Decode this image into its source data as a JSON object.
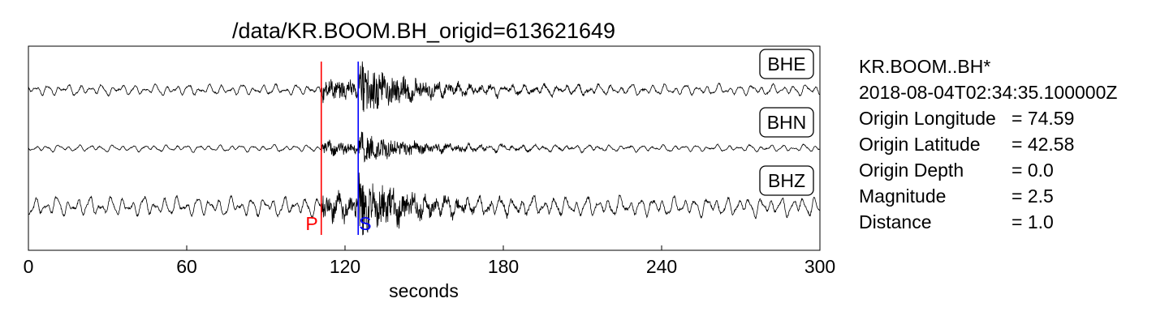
{
  "chart_data": {
    "type": "line",
    "title": "/data/KR.BOOM.BH_origid=613621649",
    "xlabel": "seconds",
    "ylabel": "",
    "xlim": [
      0,
      300
    ],
    "xticks": [
      "0",
      "60",
      "120",
      "180",
      "240",
      "300"
    ],
    "grid": false,
    "series": [
      {
        "name": "BHE",
        "color": "#000000",
        "noise_amp": 0.16,
        "signal_amp": 0.62
      },
      {
        "name": "BHN",
        "color": "#000000",
        "noise_amp": 0.1,
        "signal_amp": 0.38
      },
      {
        "name": "BHZ",
        "color": "#000000",
        "noise_amp": 0.28,
        "signal_amp": 0.72
      }
    ],
    "picks": [
      {
        "label": "P",
        "time": 111,
        "color": "#ff0000"
      },
      {
        "label": "S",
        "time": 125,
        "color": "#0000ff"
      }
    ]
  },
  "info": {
    "station": "KR.BOOM..BH*",
    "time": "2018-08-04T02:34:35.100000Z",
    "rows": [
      {
        "label": "Origin Longitude",
        "value": "= 74.59"
      },
      {
        "label": "Origin Latitude",
        "value": "= 42.58"
      },
      {
        "label": "Origin Depth",
        "value": "= 0.0"
      },
      {
        "label": "Magnitude",
        "value": "= 2.5"
      },
      {
        "label": "Distance",
        "value": "= 1.0"
      }
    ]
  }
}
